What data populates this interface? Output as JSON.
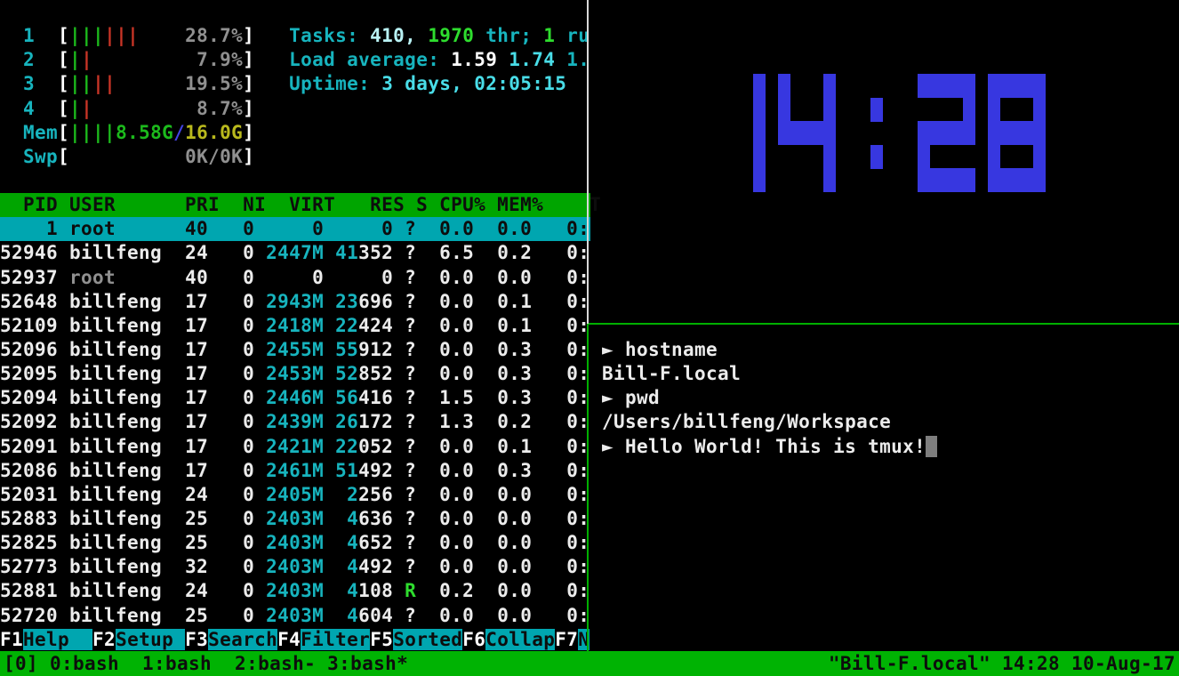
{
  "app": {
    "title": "tmux session: htop, clock, shell"
  },
  "colors": {
    "bg": "#000000",
    "fg": "#ececec",
    "fg_bold": "#ffffff",
    "black": "#0d0d0d",
    "gray": "#909090",
    "cyan": "#17b4be",
    "cyan_bold": "#49dde8",
    "cyan_pale": "#b9f2f4",
    "green": "#1cba1c",
    "green_bold": "#2edd2e",
    "red": "#c93526",
    "blue": "#4343e6",
    "yellow": "#b9b91d",
    "header_bg": "#00a500",
    "status_bg": "#00b303",
    "select_bg": "#00a6b0",
    "fkey_bg": "#00a6b0",
    "border_white": "#d9d9d9",
    "border_green": "#00b000",
    "clock_blue": "#3737e0",
    "cursor": "#7e7e7e"
  },
  "htop": {
    "meters": [
      {
        "row": 1,
        "label": "1",
        "green": 3,
        "red": 3,
        "text": [
          [
            "28.7%",
            "gray"
          ]
        ],
        "right": [
          [
            "Tasks: ",
            "cyan"
          ],
          [
            "410, ",
            "cyan_pale"
          ],
          [
            "1970 ",
            "green_bold"
          ],
          [
            "thr; ",
            "cyan"
          ],
          [
            "1 ",
            "green_bold"
          ],
          [
            "ru",
            "cyan"
          ]
        ]
      },
      {
        "row": 2,
        "label": "2",
        "green": 1,
        "red": 1,
        "text": [
          [
            "7.9%",
            "gray"
          ]
        ],
        "right": [
          [
            "Load average: ",
            "cyan"
          ],
          [
            "1.59 ",
            "fg_bold"
          ],
          [
            "1.74 ",
            "cyan_bold"
          ],
          [
            "1.",
            "cyan"
          ]
        ]
      },
      {
        "row": 3,
        "label": "3",
        "green": 2,
        "red": 2,
        "text": [
          [
            "19.5%",
            "gray"
          ]
        ],
        "right": [
          [
            "Uptime: ",
            "cyan"
          ],
          [
            "3 days, 02:05:15",
            "cyan_bold"
          ]
        ]
      },
      {
        "row": 4,
        "label": "4",
        "green": 1,
        "red": 1,
        "text": [
          [
            "8.7%",
            "gray"
          ]
        ]
      },
      {
        "row": 5,
        "label": "Mem",
        "green": 4,
        "red": 0,
        "text": [
          [
            "8.58G",
            "green"
          ],
          [
            "/",
            "blue"
          ],
          [
            "16.0G",
            "yellow"
          ]
        ]
      },
      {
        "row": 6,
        "label": "Swp",
        "green": 0,
        "red": 0,
        "text": [
          [
            "0K/0K",
            "gray"
          ]
        ]
      }
    ],
    "table": {
      "header": "  PID USER      PRI  NI  VIRT   RES S CPU% MEM%    T",
      "rows": [
        {
          "pid": "1",
          "user": "root",
          "pri": "40",
          "ni": "0",
          "virt": "0",
          "res_hi": "",
          "res_lo": "0",
          "s": "?",
          "cpu": "0.0",
          "mem": "0.0",
          "time": "0:",
          "selected": true
        },
        {
          "pid": "52946",
          "user": "billfeng",
          "pri": "24",
          "ni": "0",
          "virt": "2447M",
          "res_hi": "41",
          "res_lo": "352",
          "s": "?",
          "cpu": "6.5",
          "mem": "0.2",
          "time": "0:"
        },
        {
          "pid": "52937",
          "user": "root",
          "pri": "40",
          "ni": "0",
          "virt": "0",
          "res_hi": "",
          "res_lo": "0",
          "s": "?",
          "cpu": "0.0",
          "mem": "0.0",
          "time": "0:"
        },
        {
          "pid": "52648",
          "user": "billfeng",
          "pri": "17",
          "ni": "0",
          "virt": "2943M",
          "res_hi": "23",
          "res_lo": "696",
          "s": "?",
          "cpu": "0.0",
          "mem": "0.1",
          "time": "0:"
        },
        {
          "pid": "52109",
          "user": "billfeng",
          "pri": "17",
          "ni": "0",
          "virt": "2418M",
          "res_hi": "22",
          "res_lo": "424",
          "s": "?",
          "cpu": "0.0",
          "mem": "0.1",
          "time": "0:"
        },
        {
          "pid": "52096",
          "user": "billfeng",
          "pri": "17",
          "ni": "0",
          "virt": "2455M",
          "res_hi": "55",
          "res_lo": "912",
          "s": "?",
          "cpu": "0.0",
          "mem": "0.3",
          "time": "0:"
        },
        {
          "pid": "52095",
          "user": "billfeng",
          "pri": "17",
          "ni": "0",
          "virt": "2453M",
          "res_hi": "52",
          "res_lo": "852",
          "s": "?",
          "cpu": "0.0",
          "mem": "0.3",
          "time": "0:"
        },
        {
          "pid": "52094",
          "user": "billfeng",
          "pri": "17",
          "ni": "0",
          "virt": "2446M",
          "res_hi": "56",
          "res_lo": "416",
          "s": "?",
          "cpu": "1.5",
          "mem": "0.3",
          "time": "0:"
        },
        {
          "pid": "52092",
          "user": "billfeng",
          "pri": "17",
          "ni": "0",
          "virt": "2439M",
          "res_hi": "26",
          "res_lo": "172",
          "s": "?",
          "cpu": "1.3",
          "mem": "0.2",
          "time": "0:"
        },
        {
          "pid": "52091",
          "user": "billfeng",
          "pri": "17",
          "ni": "0",
          "virt": "2421M",
          "res_hi": "22",
          "res_lo": "052",
          "s": "?",
          "cpu": "0.0",
          "mem": "0.1",
          "time": "0:"
        },
        {
          "pid": "52086",
          "user": "billfeng",
          "pri": "17",
          "ni": "0",
          "virt": "2461M",
          "res_hi": "51",
          "res_lo": "492",
          "s": "?",
          "cpu": "0.0",
          "mem": "0.3",
          "time": "0:"
        },
        {
          "pid": "52031",
          "user": "billfeng",
          "pri": "24",
          "ni": "0",
          "virt": "2405M",
          "res_hi": "2",
          "res_lo": "256",
          "s": "?",
          "cpu": "0.0",
          "mem": "0.0",
          "time": "0:"
        },
        {
          "pid": "52883",
          "user": "billfeng",
          "pri": "25",
          "ni": "0",
          "virt": "2403M",
          "res_hi": "4",
          "res_lo": "636",
          "s": "?",
          "cpu": "0.0",
          "mem": "0.0",
          "time": "0:"
        },
        {
          "pid": "52825",
          "user": "billfeng",
          "pri": "25",
          "ni": "0",
          "virt": "2403M",
          "res_hi": "4",
          "res_lo": "652",
          "s": "?",
          "cpu": "0.0",
          "mem": "0.0",
          "time": "0:"
        },
        {
          "pid": "52773",
          "user": "billfeng",
          "pri": "32",
          "ni": "0",
          "virt": "2403M",
          "res_hi": "4",
          "res_lo": "492",
          "s": "?",
          "cpu": "0.0",
          "mem": "0.0",
          "time": "0:"
        },
        {
          "pid": "52881",
          "user": "billfeng",
          "pri": "24",
          "ni": "0",
          "virt": "2403M",
          "res_hi": "4",
          "res_lo": "108",
          "s": "R",
          "cpu": "0.2",
          "mem": "0.0",
          "time": "0:"
        },
        {
          "pid": "52720",
          "user": "billfeng",
          "pri": "25",
          "ni": "0",
          "virt": "2403M",
          "res_hi": "4",
          "res_lo": "604",
          "s": "?",
          "cpu": "0.0",
          "mem": "0.0",
          "time": "0:"
        }
      ]
    },
    "fkeys": [
      {
        "key": "F1",
        "label": "Help  "
      },
      {
        "key": "F2",
        "label": "Setup "
      },
      {
        "key": "F3",
        "label": "Search"
      },
      {
        "key": "F4",
        "label": "Filter"
      },
      {
        "key": "F5",
        "label": "Sorted"
      },
      {
        "key": "F6",
        "label": "Collap"
      },
      {
        "key": "F7",
        "label": "N"
      }
    ]
  },
  "clock": {
    "time": "14:28"
  },
  "shell": {
    "lines": [
      {
        "text": "► hostname"
      },
      {
        "text": "Bill-F.local"
      },
      {
        "text": "► pwd"
      },
      {
        "text": "/Users/billfeng/Workspace"
      },
      {
        "text": "► Hello World! This is tmux!",
        "cursor": true
      }
    ]
  },
  "status": {
    "session": "[0]",
    "windows": [
      {
        "index": "0",
        "name": "bash",
        "flag": " "
      },
      {
        "index": "1",
        "name": "bash",
        "flag": " "
      },
      {
        "index": "2",
        "name": "bash",
        "flag": "-"
      },
      {
        "index": "3",
        "name": "bash",
        "flag": "*"
      }
    ],
    "right": "\"Bill-F.local\" 14:28 10-Aug-17"
  }
}
